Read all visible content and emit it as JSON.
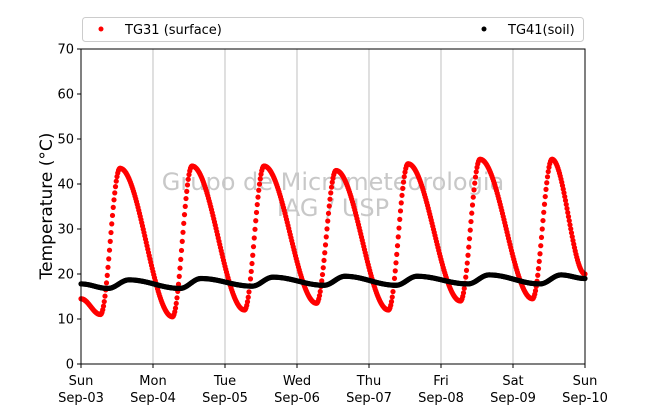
{
  "chart_data": {
    "type": "scatter",
    "ylabel": "Temperature (°C)",
    "xlabel": "",
    "ylim": [
      0,
      70
    ],
    "yticks": [
      0,
      10,
      20,
      30,
      40,
      50,
      60,
      70
    ],
    "xlim": [
      "2017-09-03",
      "2017-09-10"
    ],
    "xtick_labels": [
      {
        "day": "Sun",
        "date": "Sep-03"
      },
      {
        "day": "Mon",
        "date": "Sep-04"
      },
      {
        "day": "Tue",
        "date": "Sep-05"
      },
      {
        "day": "Wed",
        "date": "Sep-06"
      },
      {
        "day": "Thu",
        "date": "Sep-07"
      },
      {
        "day": "Fri",
        "date": "Sep-08"
      },
      {
        "day": "Sat",
        "date": "Sep-09"
      },
      {
        "day": "Sun",
        "date": "Sep-10"
      }
    ],
    "grid": "vertical",
    "legend_position": "top",
    "watermark": [
      "Grupo de Micrometeorologia",
      "IAG / USP"
    ],
    "series": [
      {
        "name": "TG31 (surface)",
        "color": "#ff0000",
        "daily": [
          {
            "date": "2017-09-03",
            "min": 11.0,
            "max": 43.5
          },
          {
            "date": "2017-09-04",
            "min": 10.5,
            "max": 44.0
          },
          {
            "date": "2017-09-05",
            "min": 12.0,
            "max": 44.0
          },
          {
            "date": "2017-09-06",
            "min": 13.5,
            "max": 43.0
          },
          {
            "date": "2017-09-07",
            "min": 12.0,
            "max": 44.5
          },
          {
            "date": "2017-09-08",
            "min": 14.0,
            "max": 45.5
          },
          {
            "date": "2017-09-09",
            "min": 14.5,
            "max": 45.5
          }
        ],
        "start_value": 14.5,
        "end_value": 20.0,
        "min_hour": 6.5,
        "max_hour": 13.0
      },
      {
        "name": "TG41(soil)",
        "color": "#000000",
        "daily": [
          {
            "date": "2017-09-03",
            "min": 16.8,
            "max": 18.7
          },
          {
            "date": "2017-09-04",
            "min": 16.8,
            "max": 19.0
          },
          {
            "date": "2017-09-05",
            "min": 17.3,
            "max": 19.3
          },
          {
            "date": "2017-09-06",
            "min": 17.5,
            "max": 19.5
          },
          {
            "date": "2017-09-07",
            "min": 17.5,
            "max": 19.5
          },
          {
            "date": "2017-09-08",
            "min": 17.8,
            "max": 19.8
          },
          {
            "date": "2017-09-09",
            "min": 17.8,
            "max": 19.8
          }
        ],
        "start_value": 17.8,
        "end_value": 19.0,
        "min_hour": 9.0,
        "max_hour": 16.0
      }
    ]
  }
}
